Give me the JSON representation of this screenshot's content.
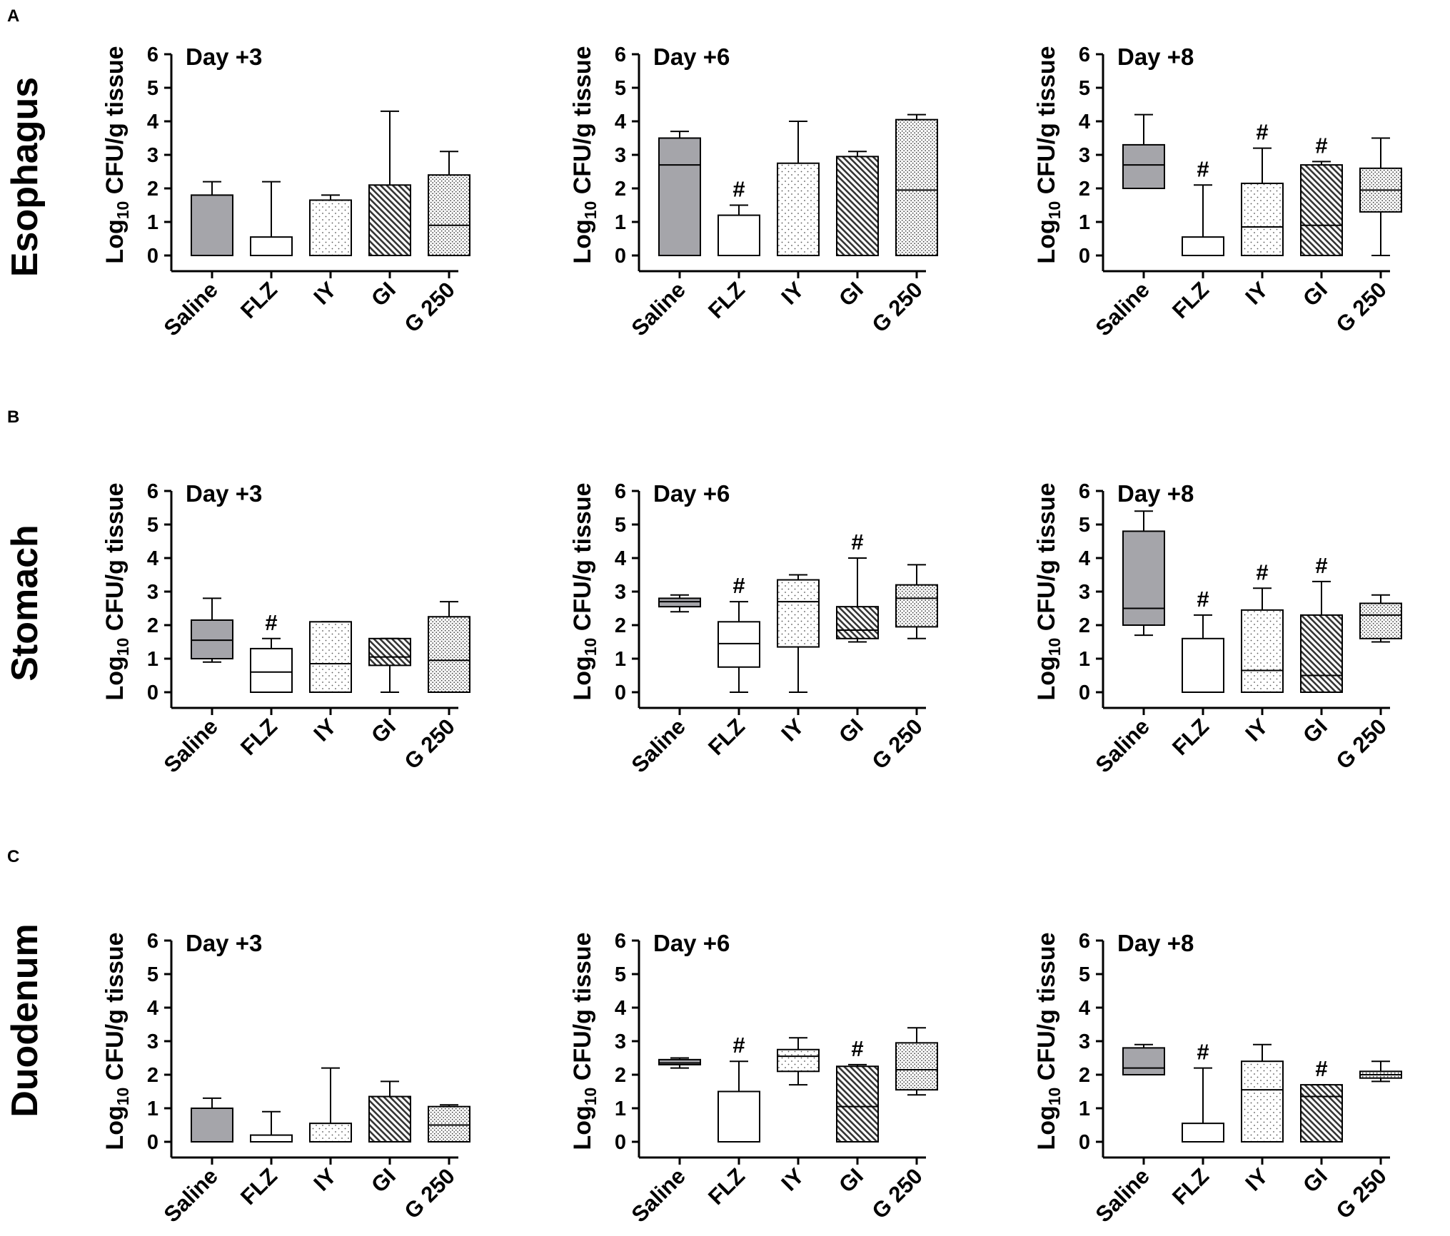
{
  "panels": [
    {
      "letter": "A",
      "organ": "Esophagus"
    },
    {
      "letter": "B",
      "organ": "Stomach"
    },
    {
      "letter": "C",
      "organ": "Duodenum"
    }
  ],
  "ylabel": {
    "prefix": "Log",
    "sub": "10",
    "rest": " CFU/g tissue"
  },
  "colors": {
    "Saline": "#a5a5aa",
    "FLZ": "#ffffff",
    "IY": "#ffffff",
    "GI": "#ffffff",
    "G 250": "#ffffff",
    "axis": "#000000"
  },
  "fills": {
    "Saline": "solid-grey",
    "FLZ": "blank",
    "IY": "sparse-dots",
    "GI": "dense-hatch",
    "G 250": "dense-dots"
  },
  "chart_data": [
    {
      "type": "box",
      "row": "A",
      "title": "Day +3",
      "categories": [
        "Saline",
        "FLZ",
        "IY",
        "GI",
        "G 250"
      ],
      "yticks": [
        "0",
        "1",
        "2",
        "3",
        "4",
        "5",
        "6"
      ],
      "ylim": [
        0,
        6
      ],
      "boxes": [
        {
          "min": 0,
          "q1": 0,
          "median": 0,
          "q3": 1.8,
          "max": 2.2
        },
        {
          "min": 0,
          "q1": 0,
          "median": 0,
          "q3": 0.55,
          "max": 2.2
        },
        {
          "min": 0,
          "q1": 0,
          "median": 0,
          "q3": 1.65,
          "max": 1.8
        },
        {
          "min": 0,
          "q1": 0,
          "median": 0,
          "q3": 2.1,
          "max": 4.3
        },
        {
          "min": 0,
          "q1": 0,
          "median": 0.9,
          "q3": 2.4,
          "max": 3.1
        }
      ],
      "sig": [
        "",
        "",
        "",
        "",
        ""
      ]
    },
    {
      "type": "box",
      "row": "A",
      "title": "Day +6",
      "categories": [
        "Saline",
        "FLZ",
        "IY",
        "GI",
        "G 250"
      ],
      "yticks": [
        "0",
        "1",
        "2",
        "3",
        "4",
        "5",
        "6"
      ],
      "ylim": [
        0,
        6
      ],
      "boxes": [
        {
          "min": 0,
          "q1": 0,
          "median": 2.7,
          "q3": 3.5,
          "max": 3.7
        },
        {
          "min": 0,
          "q1": 0,
          "median": 0,
          "q3": 1.2,
          "max": 1.5
        },
        {
          "min": 0,
          "q1": 0,
          "median": 0,
          "q3": 2.75,
          "max": 4.0
        },
        {
          "min": 0,
          "q1": 0,
          "median": 0,
          "q3": 2.95,
          "max": 3.1
        },
        {
          "min": 0,
          "q1": 0,
          "median": 1.95,
          "q3": 4.05,
          "max": 4.2
        }
      ],
      "sig": [
        "",
        "#",
        "",
        "",
        ""
      ]
    },
    {
      "type": "box",
      "row": "A",
      "title": "Day +8",
      "categories": [
        "Saline",
        "FLZ",
        "IY",
        "GI",
        "G 250"
      ],
      "yticks": [
        "0",
        "1",
        "2",
        "3",
        "4",
        "5",
        "6"
      ],
      "ylim": [
        0,
        6
      ],
      "boxes": [
        {
          "min": 2.0,
          "q1": 2.0,
          "median": 2.7,
          "q3": 3.3,
          "max": 4.2
        },
        {
          "min": 0,
          "q1": 0,
          "median": 0,
          "q3": 0.55,
          "max": 2.1
        },
        {
          "min": 0,
          "q1": 0,
          "median": 0.85,
          "q3": 2.15,
          "max": 3.2
        },
        {
          "min": 0,
          "q1": 0,
          "median": 0.9,
          "q3": 2.7,
          "max": 2.8
        },
        {
          "min": 0,
          "q1": 1.3,
          "median": 1.95,
          "q3": 2.6,
          "max": 3.5
        }
      ],
      "sig": [
        "",
        "#",
        "#",
        "#",
        ""
      ]
    },
    {
      "type": "box",
      "row": "B",
      "title": "Day +3",
      "categories": [
        "Saline",
        "FLZ",
        "IY",
        "GI",
        "G 250"
      ],
      "yticks": [
        "0",
        "1",
        "2",
        "3",
        "4",
        "5",
        "6"
      ],
      "ylim": [
        0,
        6
      ],
      "boxes": [
        {
          "min": 0.9,
          "q1": 1.0,
          "median": 1.55,
          "q3": 2.15,
          "max": 2.8
        },
        {
          "min": 0,
          "q1": 0,
          "median": 0.6,
          "q3": 1.3,
          "max": 1.6
        },
        {
          "min": 0,
          "q1": 0,
          "median": 0.85,
          "q3": 2.1,
          "max": 2.1
        },
        {
          "min": 0,
          "q1": 0.8,
          "median": 1.05,
          "q3": 1.6,
          "max": 1.6
        },
        {
          "min": 0,
          "q1": 0,
          "median": 0.95,
          "q3": 2.25,
          "max": 2.7
        }
      ],
      "sig": [
        "",
        "#",
        "",
        "",
        ""
      ]
    },
    {
      "type": "box",
      "row": "B",
      "title": "Day +6",
      "categories": [
        "Saline",
        "FLZ",
        "IY",
        "GI",
        "G 250"
      ],
      "yticks": [
        "0",
        "1",
        "2",
        "3",
        "4",
        "5",
        "6"
      ],
      "ylim": [
        0,
        6
      ],
      "boxes": [
        {
          "min": 2.4,
          "q1": 2.55,
          "median": 2.7,
          "q3": 2.8,
          "max": 2.9
        },
        {
          "min": 0,
          "q1": 0.75,
          "median": 1.45,
          "q3": 2.1,
          "max": 2.7
        },
        {
          "min": 0,
          "q1": 1.35,
          "median": 2.7,
          "q3": 3.35,
          "max": 3.5
        },
        {
          "min": 1.5,
          "q1": 1.6,
          "median": 1.85,
          "q3": 2.55,
          "max": 4.0
        },
        {
          "min": 1.6,
          "q1": 1.95,
          "median": 2.8,
          "q3": 3.2,
          "max": 3.8
        }
      ],
      "sig": [
        "",
        "#",
        "",
        "#",
        ""
      ]
    },
    {
      "type": "box",
      "row": "B",
      "title": "Day +8",
      "categories": [
        "Saline",
        "FLZ",
        "IY",
        "GI",
        "G 250"
      ],
      "yticks": [
        "0",
        "1",
        "2",
        "3",
        "4",
        "5",
        "6"
      ],
      "ylim": [
        0,
        6
      ],
      "boxes": [
        {
          "min": 1.7,
          "q1": 2.0,
          "median": 2.5,
          "q3": 4.8,
          "max": 5.4
        },
        {
          "min": 0,
          "q1": 0,
          "median": 0,
          "q3": 1.6,
          "max": 2.3
        },
        {
          "min": 0,
          "q1": 0,
          "median": 0.65,
          "q3": 2.45,
          "max": 3.1
        },
        {
          "min": 0,
          "q1": 0,
          "median": 0.5,
          "q3": 2.3,
          "max": 3.3
        },
        {
          "min": 1.5,
          "q1": 1.6,
          "median": 2.3,
          "q3": 2.65,
          "max": 2.9
        }
      ],
      "sig": [
        "",
        "#",
        "#",
        "#",
        ""
      ]
    },
    {
      "type": "box",
      "row": "C",
      "title": "Day +3",
      "categories": [
        "Saline",
        "FLZ",
        "IY",
        "GI",
        "G 250"
      ],
      "yticks": [
        "0",
        "1",
        "2",
        "3",
        "4",
        "5",
        "6"
      ],
      "ylim": [
        0,
        6
      ],
      "boxes": [
        {
          "min": 0,
          "q1": 0,
          "median": 0,
          "q3": 1.0,
          "max": 1.3
        },
        {
          "min": 0,
          "q1": 0,
          "median": 0,
          "q3": 0.2,
          "max": 0.9
        },
        {
          "min": 0,
          "q1": 0,
          "median": 0,
          "q3": 0.55,
          "max": 2.2
        },
        {
          "min": 0,
          "q1": 0,
          "median": 0,
          "q3": 1.35,
          "max": 1.8
        },
        {
          "min": 0,
          "q1": 0,
          "median": 0.5,
          "q3": 1.05,
          "max": 1.1
        }
      ],
      "sig": [
        "",
        "",
        "",
        "",
        ""
      ]
    },
    {
      "type": "box",
      "row": "C",
      "title": "Day +6",
      "categories": [
        "Saline",
        "FLZ",
        "IY",
        "GI",
        "G 250"
      ],
      "yticks": [
        "0",
        "1",
        "2",
        "3",
        "4",
        "5",
        "6"
      ],
      "ylim": [
        0,
        6
      ],
      "boxes": [
        {
          "min": 2.2,
          "q1": 2.3,
          "median": 2.35,
          "q3": 2.45,
          "max": 2.5
        },
        {
          "min": 0,
          "q1": 0,
          "median": 0,
          "q3": 1.5,
          "max": 2.4
        },
        {
          "min": 1.7,
          "q1": 2.1,
          "median": 2.55,
          "q3": 2.75,
          "max": 3.1
        },
        {
          "min": 0,
          "q1": 0,
          "median": 1.05,
          "q3": 2.25,
          "max": 2.3
        },
        {
          "min": 1.4,
          "q1": 1.55,
          "median": 2.15,
          "q3": 2.95,
          "max": 3.4
        }
      ],
      "sig": [
        "",
        "#",
        "",
        "#",
        ""
      ]
    },
    {
      "type": "box",
      "row": "C",
      "title": "Day +8",
      "categories": [
        "Saline",
        "FLZ",
        "IY",
        "GI",
        "G 250"
      ],
      "yticks": [
        "0",
        "1",
        "2",
        "3",
        "4",
        "5",
        "6"
      ],
      "ylim": [
        0,
        6
      ],
      "boxes": [
        {
          "min": 2.0,
          "q1": 2.0,
          "median": 2.2,
          "q3": 2.8,
          "max": 2.9
        },
        {
          "min": 0,
          "q1": 0,
          "median": 0,
          "q3": 0.55,
          "max": 2.2
        },
        {
          "min": 0,
          "q1": 0,
          "median": 1.55,
          "q3": 2.4,
          "max": 2.9
        },
        {
          "min": 0,
          "q1": 0,
          "median": 1.35,
          "q3": 1.7,
          "max": 1.7
        },
        {
          "min": 1.8,
          "q1": 1.9,
          "median": 2.0,
          "q3": 2.1,
          "max": 2.4
        }
      ],
      "sig": [
        "",
        "#",
        "",
        "#",
        ""
      ]
    }
  ]
}
